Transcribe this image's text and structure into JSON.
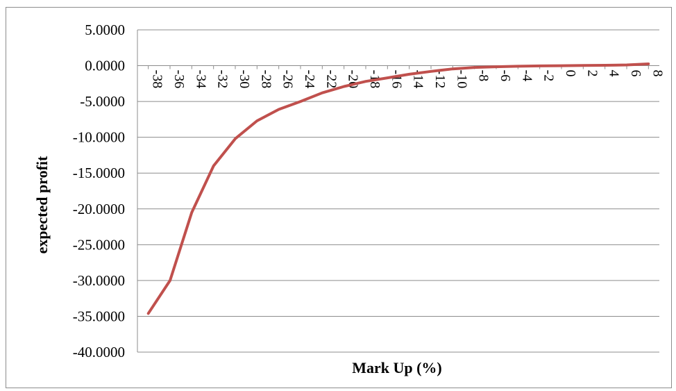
{
  "chart_data": {
    "type": "line",
    "title": "",
    "xlabel": "Mark Up (%)",
    "ylabel": "expected profit",
    "categories": [
      "-38",
      "-36",
      "-34",
      "-32",
      "-30",
      "-28",
      "-26",
      "-24",
      "-22",
      "-20",
      "-18",
      "-16",
      "-14",
      "-12",
      "-10",
      "-8",
      "-6",
      "-4",
      "-2",
      "0",
      "2",
      "4",
      "6",
      "8"
    ],
    "series": [
      {
        "values": [
          -34.6,
          -30.0,
          -20.5,
          -14.0,
          -10.2,
          -7.7,
          -6.1,
          -5.0,
          -3.8,
          -2.9,
          -2.2,
          -1.7,
          -1.2,
          -0.8,
          -0.45,
          -0.25,
          -0.15,
          -0.08,
          -0.03,
          0.0,
          0.02,
          0.05,
          0.1,
          0.25
        ],
        "color": "#c0504d"
      }
    ],
    "ylim": [
      -40,
      5
    ],
    "yticks": [
      5,
      0,
      -5,
      -10,
      -15,
      -20,
      -25,
      -30,
      -35,
      -40
    ],
    "ytick_labels": [
      "5.0000",
      "0.0000",
      "-5.0000",
      "-10.0000",
      "-15.0000",
      "-20.0000",
      "-25.0000",
      "-30.0000",
      "-35.0000",
      "-40.0000"
    ],
    "grid": true,
    "legend": "none",
    "colors": {
      "line": "#c0504d",
      "grid": "#8c8c8c",
      "axis": "#8c8c8c"
    }
  }
}
